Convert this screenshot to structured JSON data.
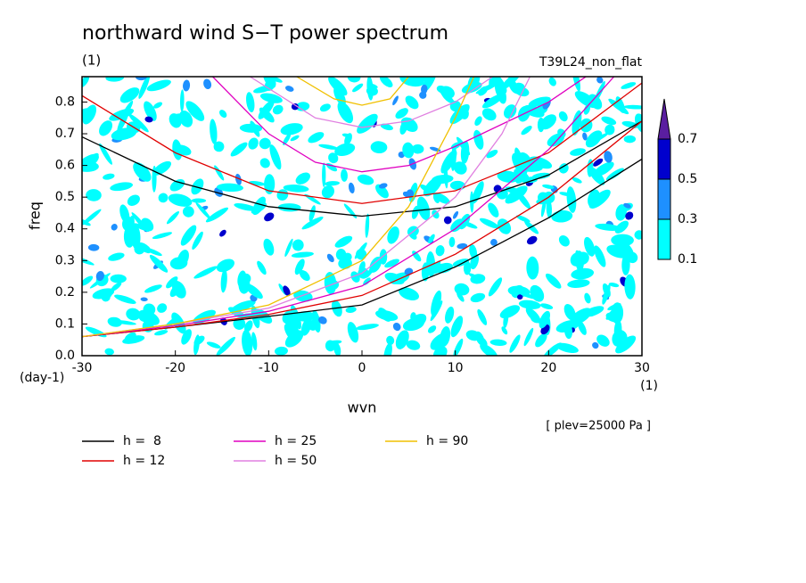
{
  "chart_data": {
    "type": "contour-curves",
    "title": "northward wind S−T power spectrum",
    "subtitle_left": "(1)",
    "subtitle_right": "T39L24_non_flat",
    "x_label": "wvn",
    "x_unit": "(1)",
    "y_label": "freq",
    "y_unit": "(day-1)",
    "note": "[ plev=25000 Pa ]",
    "xlim": [
      -30,
      30
    ],
    "xticks": [
      -30,
      -20,
      -10,
      0,
      10,
      20,
      30
    ],
    "ylim": [
      0,
      0.88
    ],
    "yticks": [
      {
        "value": 0,
        "label": "0.0"
      },
      0.1,
      0.2,
      0.3,
      0.4,
      0.5,
      0.6,
      0.7,
      0.8
    ],
    "colorbar": {
      "levels": [
        0.1,
        0.3,
        0.5,
        0.7
      ],
      "colors": [
        "#00ffff",
        "#1e90ff",
        "#0000cd",
        "#5a1ea0"
      ]
    },
    "series": [
      {
        "name": "h =  8",
        "color": "#000000",
        "curves": [
          {
            "x": [
              -30,
              -20,
              -10,
              0,
              10,
              20,
              30
            ],
            "y": [
              0.06,
              0.09,
              0.124,
              0.16,
              0.28,
              0.435,
              0.62
            ]
          },
          {
            "x": [
              -30,
              -20,
              -10,
              0,
              10,
              20,
              30
            ],
            "y": [
              0.69,
              0.55,
              0.47,
              0.44,
              0.47,
              0.57,
              0.74
            ]
          }
        ]
      },
      {
        "name": "h = 12",
        "color": "#e00000",
        "curves": [
          {
            "x": [
              -30,
              -20,
              -10,
              0,
              10,
              20,
              30
            ],
            "y": [
              0.06,
              0.09,
              0.13,
              0.19,
              0.32,
              0.5,
              0.74
            ]
          },
          {
            "x": [
              -30,
              -20,
              -10,
              0,
              10,
              20,
              30
            ],
            "y": [
              0.82,
              0.64,
              0.52,
              0.48,
              0.52,
              0.64,
              0.86
            ]
          }
        ]
      },
      {
        "name": "h = 25",
        "color": "#e000c0",
        "curves": [
          {
            "x": [
              -30,
              -20,
              -10,
              0,
              10,
              20,
              27
            ],
            "y": [
              0.06,
              0.095,
              0.14,
              0.22,
              0.4,
              0.65,
              0.88
            ]
          },
          {
            "x": [
              -16,
              -10,
              -5,
              0,
              5,
              10,
              20,
              24
            ],
            "y": [
              0.88,
              0.7,
              0.61,
              0.58,
              0.6,
              0.66,
              0.8,
              0.88
            ]
          }
        ]
      },
      {
        "name": "h = 50",
        "color": "#e080e0",
        "curves": [
          {
            "x": [
              -30,
              -20,
              -10,
              0,
              10,
              15,
              18
            ],
            "y": [
              0.06,
              0.1,
              0.15,
              0.26,
              0.5,
              0.7,
              0.88
            ]
          },
          {
            "x": [
              -12,
              -5,
              0,
              5,
              10,
              14
            ],
            "y": [
              0.88,
              0.75,
              0.72,
              0.74,
              0.8,
              0.88
            ]
          }
        ]
      },
      {
        "name": "h = 90",
        "color": "#f0c000",
        "curves": [
          {
            "x": [
              -30,
              -20,
              -10,
              0,
              5,
              10,
              12
            ],
            "y": [
              0.06,
              0.1,
              0.16,
              0.3,
              0.47,
              0.75,
              0.88
            ]
          },
          {
            "x": [
              -7,
              -3,
              0,
              3,
              5
            ],
            "y": [
              0.88,
              0.81,
              0.79,
              0.81,
              0.88
            ]
          }
        ]
      }
    ]
  }
}
